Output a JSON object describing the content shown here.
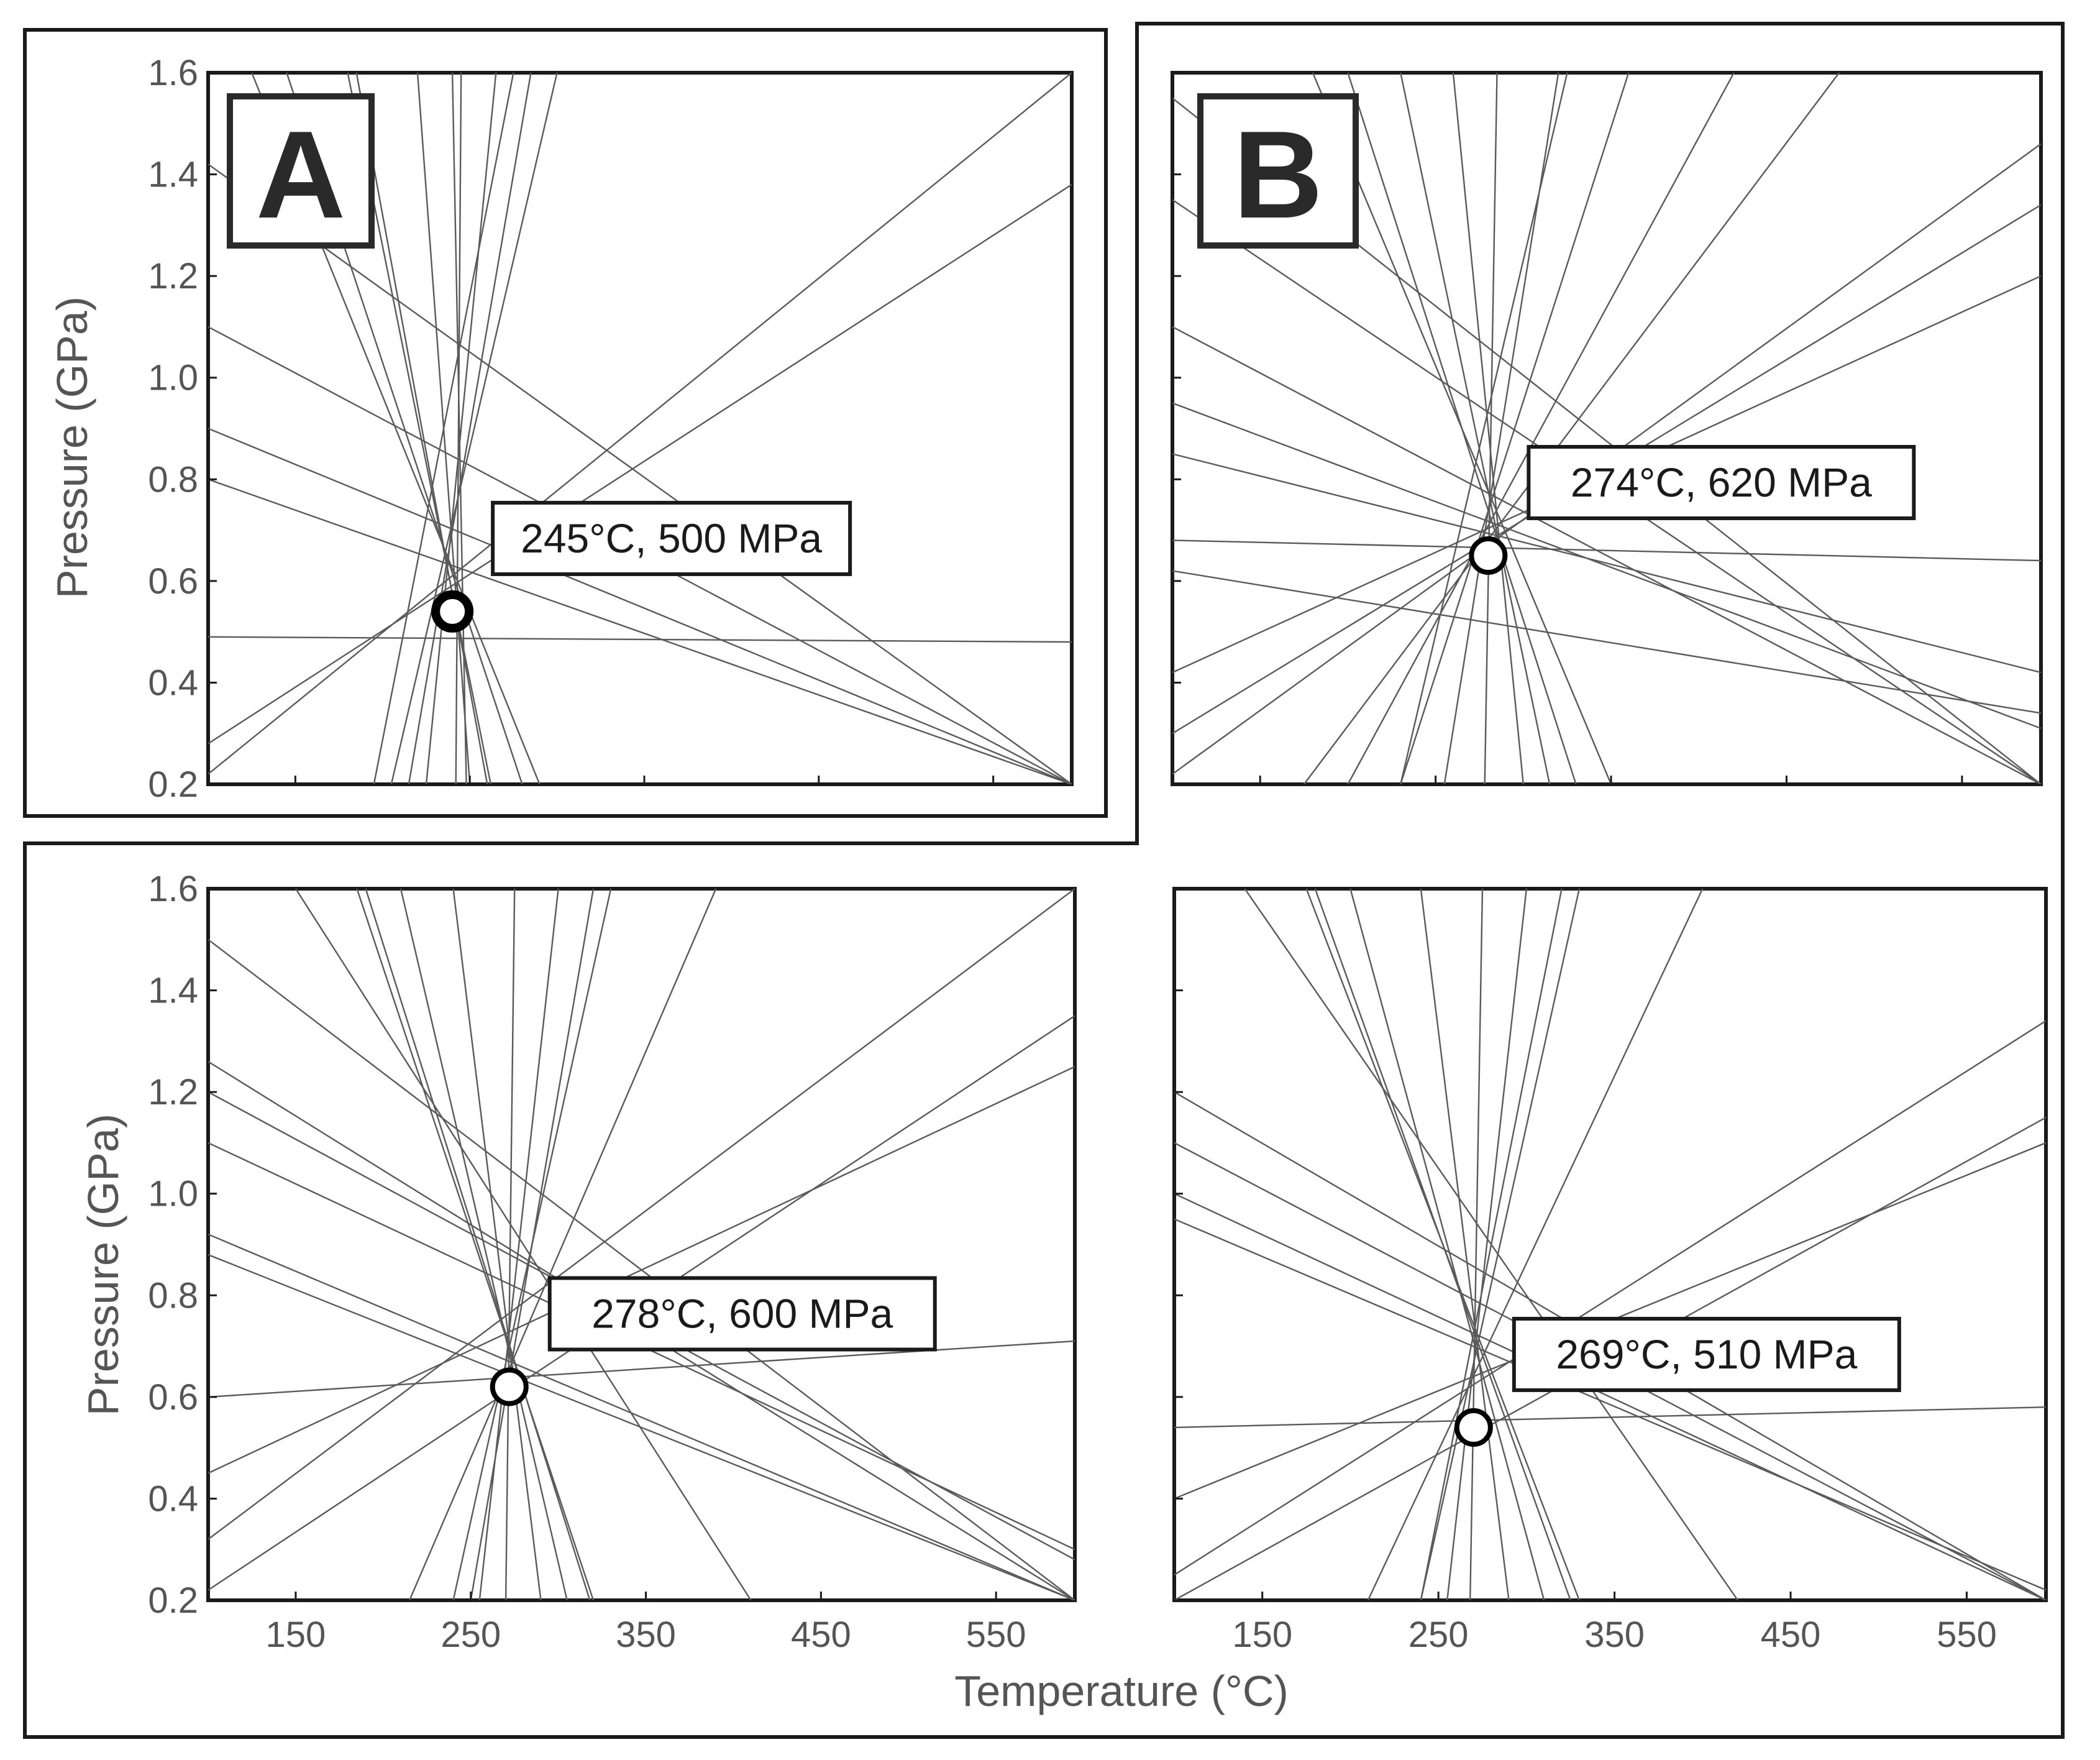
{
  "figure": {
    "panel_letters": [
      "A",
      "B"
    ],
    "y_axis_label": "Pressure (GPa)",
    "x_axis_label": "Temperature (°C)",
    "y_ticks": [
      "1.6",
      "1.4",
      "1.2",
      "1.0",
      "0.8",
      "0.6",
      "0.4",
      "0.2"
    ],
    "x_ticks": [
      "150",
      "250",
      "350",
      "450",
      "550"
    ]
  },
  "chart_data": [
    {
      "type": "line",
      "panel": "top-left",
      "letter": "A",
      "xlim": [
        100,
        595
      ],
      "ylim": [
        0.2,
        1.6
      ],
      "ylabel": "",
      "xlabel": "",
      "y_ticks_labeled": true,
      "x_ticks_labeled": false,
      "intersection": {
        "x": 240,
        "y": 0.54,
        "label": "245°C, 500 MPa"
      },
      "series": [
        {
          "x": [
            100,
            595
          ],
          "y": [
            0.49,
            0.48
          ]
        },
        {
          "x": [
            100,
            595
          ],
          "y": [
            0.28,
            1.38
          ]
        },
        {
          "x": [
            100,
            595
          ],
          "y": [
            0.22,
            1.6
          ]
        },
        {
          "x": [
            100,
            595
          ],
          "y": [
            1.42,
            0.2
          ]
        },
        {
          "x": [
            100,
            595
          ],
          "y": [
            1.1,
            0.2
          ]
        },
        {
          "x": [
            100,
            595
          ],
          "y": [
            0.9,
            0.2
          ]
        },
        {
          "x": [
            100,
            595
          ],
          "y": [
            0.8,
            0.2
          ]
        },
        {
          "x": [
            185,
            260
          ],
          "y": [
            1.6,
            0.2
          ]
        },
        {
          "x": [
            180,
            262
          ],
          "y": [
            1.6,
            0.2
          ]
        },
        {
          "x": [
            125,
            290
          ],
          "y": [
            1.6,
            0.2
          ]
        },
        {
          "x": [
            145,
            280
          ],
          "y": [
            1.6,
            0.2
          ]
        },
        {
          "x": [
            220,
            250
          ],
          "y": [
            1.6,
            0.2
          ]
        },
        {
          "x": [
            245,
            242
          ],
          "y": [
            1.6,
            0.2
          ]
        },
        {
          "x": [
            195,
            275
          ],
          "y": [
            0.2,
            1.6
          ]
        },
        {
          "x": [
            265,
            225
          ],
          "y": [
            1.6,
            0.2
          ]
        },
        {
          "x": [
            285,
            215
          ],
          "y": [
            1.6,
            0.2
          ]
        },
        {
          "x": [
            300,
            205
          ],
          "y": [
            1.6,
            0.2
          ]
        },
        {
          "x": [
            240,
            248
          ],
          "y": [
            1.6,
            0.2
          ]
        }
      ]
    },
    {
      "type": "line",
      "panel": "top-right",
      "letter": "B",
      "xlim": [
        100,
        595
      ],
      "ylim": [
        0.2,
        1.6
      ],
      "ylabel": "",
      "xlabel": "",
      "y_ticks_labeled": false,
      "x_ticks_labeled": false,
      "intersection": {
        "x": 280,
        "y": 0.65,
        "label": "274°C, 620 MPa"
      },
      "series": [
        {
          "x": [
            100,
            595
          ],
          "y": [
            0.68,
            0.64
          ]
        },
        {
          "x": [
            100,
            595
          ],
          "y": [
            0.62,
            0.34
          ]
        },
        {
          "x": [
            100,
            595
          ],
          "y": [
            0.22,
            1.46
          ]
        },
        {
          "x": [
            100,
            595
          ],
          "y": [
            0.3,
            1.34
          ]
        },
        {
          "x": [
            100,
            595
          ],
          "y": [
            0.42,
            1.2
          ]
        },
        {
          "x": [
            100,
            595
          ],
          "y": [
            1.55,
            0.2
          ]
        },
        {
          "x": [
            100,
            595
          ],
          "y": [
            1.35,
            0.2
          ]
        },
        {
          "x": [
            100,
            595
          ],
          "y": [
            1.1,
            0.2
          ]
        },
        {
          "x": [
            100,
            595
          ],
          "y": [
            0.95,
            0.31
          ]
        },
        {
          "x": [
            100,
            595
          ],
          "y": [
            0.85,
            0.42
          ]
        },
        {
          "x": [
            180,
            350
          ],
          "y": [
            1.6,
            0.2
          ]
        },
        {
          "x": [
            200,
            330
          ],
          "y": [
            1.6,
            0.2
          ]
        },
        {
          "x": [
            230,
            315
          ],
          "y": [
            1.6,
            0.2
          ]
        },
        {
          "x": [
            260,
            300
          ],
          "y": [
            1.6,
            0.2
          ]
        },
        {
          "x": [
            285,
            278
          ],
          "y": [
            1.6,
            0.2
          ]
        },
        {
          "x": [
            320,
            255
          ],
          "y": [
            1.6,
            0.2
          ]
        },
        {
          "x": [
            360,
            230
          ],
          "y": [
            1.6,
            0.2
          ]
        },
        {
          "x": [
            420,
            200
          ],
          "y": [
            1.6,
            0.2
          ]
        },
        {
          "x": [
            480,
            175
          ],
          "y": [
            1.6,
            0.2
          ]
        },
        {
          "x": [
            230,
            325
          ],
          "y": [
            0.2,
            1.6
          ]
        }
      ]
    },
    {
      "type": "line",
      "panel": "bottom-left",
      "xlim": [
        100,
        595
      ],
      "ylim": [
        0.2,
        1.6
      ],
      "ylabel": "",
      "xlabel": "",
      "y_ticks_labeled": true,
      "x_ticks_labeled": true,
      "intersection": {
        "x": 272,
        "y": 0.62,
        "label": "278°C, 600 MPa"
      },
      "series": [
        {
          "x": [
            100,
            595
          ],
          "y": [
            0.6,
            0.71
          ]
        },
        {
          "x": [
            100,
            595
          ],
          "y": [
            0.32,
            1.6
          ]
        },
        {
          "x": [
            100,
            595
          ],
          "y": [
            0.22,
            1.35
          ]
        },
        {
          "x": [
            100,
            595
          ],
          "y": [
            0.45,
            1.25
          ]
        },
        {
          "x": [
            100,
            595
          ],
          "y": [
            1.5,
            0.2
          ]
        },
        {
          "x": [
            100,
            595
          ],
          "y": [
            1.26,
            0.2
          ]
        },
        {
          "x": [
            100,
            595
          ],
          "y": [
            1.2,
            0.28
          ]
        },
        {
          "x": [
            100,
            595
          ],
          "y": [
            1.1,
            0.3
          ]
        },
        {
          "x": [
            100,
            595
          ],
          "y": [
            0.92,
            0.2
          ]
        },
        {
          "x": [
            100,
            595
          ],
          "y": [
            0.88,
            0.2
          ]
        },
        {
          "x": [
            185,
            320
          ],
          "y": [
            1.6,
            0.2
          ]
        },
        {
          "x": [
            190,
            318
          ],
          "y": [
            1.6,
            0.2
          ]
        },
        {
          "x": [
            210,
            305
          ],
          "y": [
            1.6,
            0.2
          ]
        },
        {
          "x": [
            240,
            290
          ],
          "y": [
            1.6,
            0.2
          ]
        },
        {
          "x": [
            275,
            270
          ],
          "y": [
            1.6,
            0.2
          ]
        },
        {
          "x": [
            300,
            255
          ],
          "y": [
            1.6,
            0.2
          ]
        },
        {
          "x": [
            330,
            240
          ],
          "y": [
            1.6,
            0.2
          ]
        },
        {
          "x": [
            390,
            215
          ],
          "y": [
            1.6,
            0.2
          ]
        },
        {
          "x": [
            250,
            320
          ],
          "y": [
            0.2,
            1.6
          ]
        },
        {
          "x": [
            150,
            410
          ],
          "y": [
            1.6,
            0.2
          ]
        }
      ]
    },
    {
      "type": "line",
      "panel": "bottom-right",
      "xlim": [
        100,
        595
      ],
      "ylim": [
        0.2,
        1.6
      ],
      "ylabel": "",
      "xlabel": "",
      "y_ticks_labeled": false,
      "x_ticks_labeled": true,
      "intersection": {
        "x": 270,
        "y": 0.54,
        "label": "269°C, 510 MPa"
      },
      "series": [
        {
          "x": [
            100,
            595
          ],
          "y": [
            0.54,
            0.58
          ]
        },
        {
          "x": [
            100,
            595
          ],
          "y": [
            0.25,
            1.34
          ]
        },
        {
          "x": [
            100,
            595
          ],
          "y": [
            0.2,
            1.15
          ]
        },
        {
          "x": [
            100,
            595
          ],
          "y": [
            0.4,
            1.1
          ]
        },
        {
          "x": [
            100,
            595
          ],
          "y": [
            1.2,
            0.2
          ]
        },
        {
          "x": [
            100,
            595
          ],
          "y": [
            1.1,
            0.2
          ]
        },
        {
          "x": [
            100,
            595
          ],
          "y": [
            0.95,
            0.22
          ]
        },
        {
          "x": [
            100,
            595
          ],
          "y": [
            1.0,
            0.2
          ]
        },
        {
          "x": [
            175,
            330
          ],
          "y": [
            1.6,
            0.2
          ]
        },
        {
          "x": [
            180,
            325
          ],
          "y": [
            1.6,
            0.2
          ]
        },
        {
          "x": [
            200,
            310
          ],
          "y": [
            1.6,
            0.2
          ]
        },
        {
          "x": [
            240,
            290
          ],
          "y": [
            1.6,
            0.2
          ]
        },
        {
          "x": [
            275,
            268
          ],
          "y": [
            1.6,
            0.2
          ]
        },
        {
          "x": [
            300,
            255
          ],
          "y": [
            1.6,
            0.2
          ]
        },
        {
          "x": [
            330,
            240
          ],
          "y": [
            1.6,
            0.2
          ]
        },
        {
          "x": [
            400,
            210
          ],
          "y": [
            1.6,
            0.2
          ]
        },
        {
          "x": [
            240,
            320
          ],
          "y": [
            0.2,
            1.6
          ]
        },
        {
          "x": [
            140,
            420
          ],
          "y": [
            1.6,
            0.2
          ]
        }
      ]
    }
  ]
}
